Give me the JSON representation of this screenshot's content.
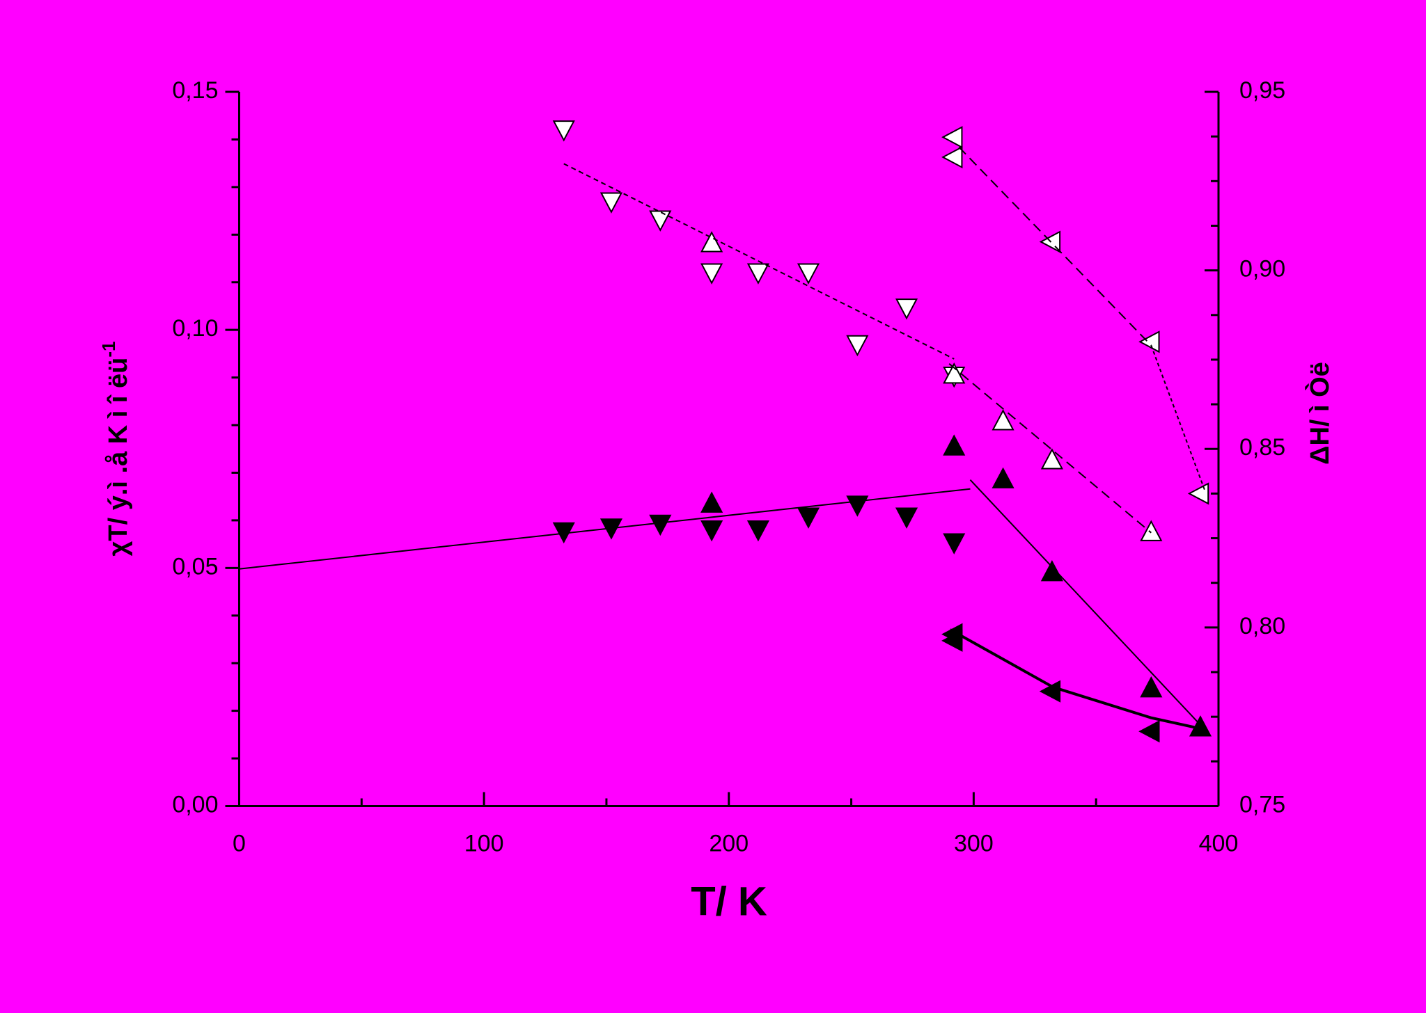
{
  "chart_data": {
    "type": "scatter",
    "xlabel": "T/ K",
    "ylabel": "χT/ ý.ì .å K ì î ëü",
    "ylabel_sup": "-1",
    "y2label": "ΔH/ ì Òë",
    "background": "#ff00ff",
    "xlim": [
      0,
      400
    ],
    "xticks": [
      0,
      100,
      200,
      300,
      400
    ],
    "xminorticks": [
      50,
      150,
      250,
      350
    ],
    "ylim": [
      0,
      0.15
    ],
    "yticks": [
      {
        "value": 0,
        "label": "0,00"
      },
      {
        "value": 0.05,
        "label": "0,05"
      },
      {
        "value": 0.1,
        "label": "0,10"
      },
      {
        "value": 0.15,
        "label": "0,15"
      }
    ],
    "yminorticks": [
      0.01,
      0.02,
      0.03,
      0.04,
      0.06,
      0.07,
      0.08,
      0.09,
      0.11,
      0.12,
      0.13,
      0.14
    ],
    "y2lim": [
      0.75,
      0.95
    ],
    "y2ticks": [
      {
        "value": 0.75,
        "label": "0,75"
      },
      {
        "value": 0.8,
        "label": "0,80"
      },
      {
        "value": 0.85,
        "label": "0,85"
      },
      {
        "value": 0.9,
        "label": "0,90"
      },
      {
        "value": 0.95,
        "label": "0,95"
      }
    ],
    "y2minorticks": [
      0.7625,
      0.775,
      0.7875,
      0.8125,
      0.825,
      0.8375,
      0.8625,
      0.875,
      0.8875,
      0.9125,
      0.925,
      0.9375
    ],
    "series": [
      {
        "marker": "triangle-down",
        "color": "#ffffff",
        "x": [
          132.6,
          152,
          172,
          193,
          212,
          232.5,
          252.5,
          272.6,
          292
        ],
        "values": [
          0.1422,
          0.1271,
          0.1233,
          0.1122,
          0.1122,
          0.1122,
          0.0971,
          0.1048,
          0.0905
        ]
      },
      {
        "marker": "triangle-up",
        "color": "#ffffff",
        "x": [
          193,
          292,
          312,
          332,
          372.5
        ],
        "values": [
          0.1181,
          0.0905,
          0.0807,
          0.0725,
          0.0574
        ]
      },
      {
        "marker": "triangle-left",
        "color": "#ffffff",
        "axis": "y2",
        "x": [
          292,
          292,
          332,
          372.5,
          392.6
        ],
        "values": [
          0.9373,
          0.9317,
          0.908,
          0.88,
          0.8375
        ]
      },
      {
        "marker": "triangle-down",
        "color": "#000000",
        "x": [
          132.6,
          152,
          172,
          193,
          212,
          232.5,
          252.5,
          272.6,
          292
        ],
        "values": [
          0.0578,
          0.0586,
          0.0594,
          0.0582,
          0.0582,
          0.0609,
          0.0634,
          0.0609,
          0.0555
        ]
      },
      {
        "marker": "triangle-up",
        "color": "#000000",
        "x": [
          193,
          292,
          312,
          332,
          372.5,
          392.6
        ],
        "values": [
          0.0634,
          0.0754,
          0.0685,
          0.049,
          0.0246,
          0.0164
        ]
      },
      {
        "marker": "triangle-left",
        "color": "#000000",
        "axis": "y2",
        "x": [
          292,
          292,
          332,
          372.5
        ],
        "values": [
          0.7981,
          0.7963,
          0.7821,
          0.7709
        ]
      },
      {
        "style": "line",
        "color": "#000000",
        "x": [
          0,
          298.6
        ],
        "values": [
          0.0498,
          0.0666
        ]
      },
      {
        "style": "line",
        "color": "#000000",
        "x": [
          298.6,
          394.5
        ],
        "values": [
          0.0685,
          0.016
        ]
      },
      {
        "style": "line",
        "color": "#000000",
        "dash": "7,5",
        "x": [
          132.6,
          292
        ],
        "values": [
          0.1349,
          0.0939
        ]
      },
      {
        "style": "line",
        "color": "#000000",
        "dash": "14,8",
        "x": [
          290,
          372.5
        ],
        "values": [
          0.0929,
          0.0574
        ]
      },
      {
        "style": "line",
        "color": "#000000",
        "dash": "14,8",
        "axis": "y2",
        "x": [
          294,
          372.5
        ],
        "values": [
          0.9345,
          0.879
        ]
      },
      {
        "style": "line",
        "color": "#000000",
        "dash": "5,4",
        "axis": "y2",
        "x": [
          372.5,
          394.5
        ],
        "values": [
          0.879,
          0.8382
        ]
      },
      {
        "style": "line",
        "color": "#000000",
        "width": 4,
        "axis": "y2",
        "x": [
          290.4,
          332.4,
          372.5,
          394.5
        ],
        "values": [
          0.7994,
          0.7833,
          0.7747,
          0.7714
        ]
      }
    ]
  }
}
